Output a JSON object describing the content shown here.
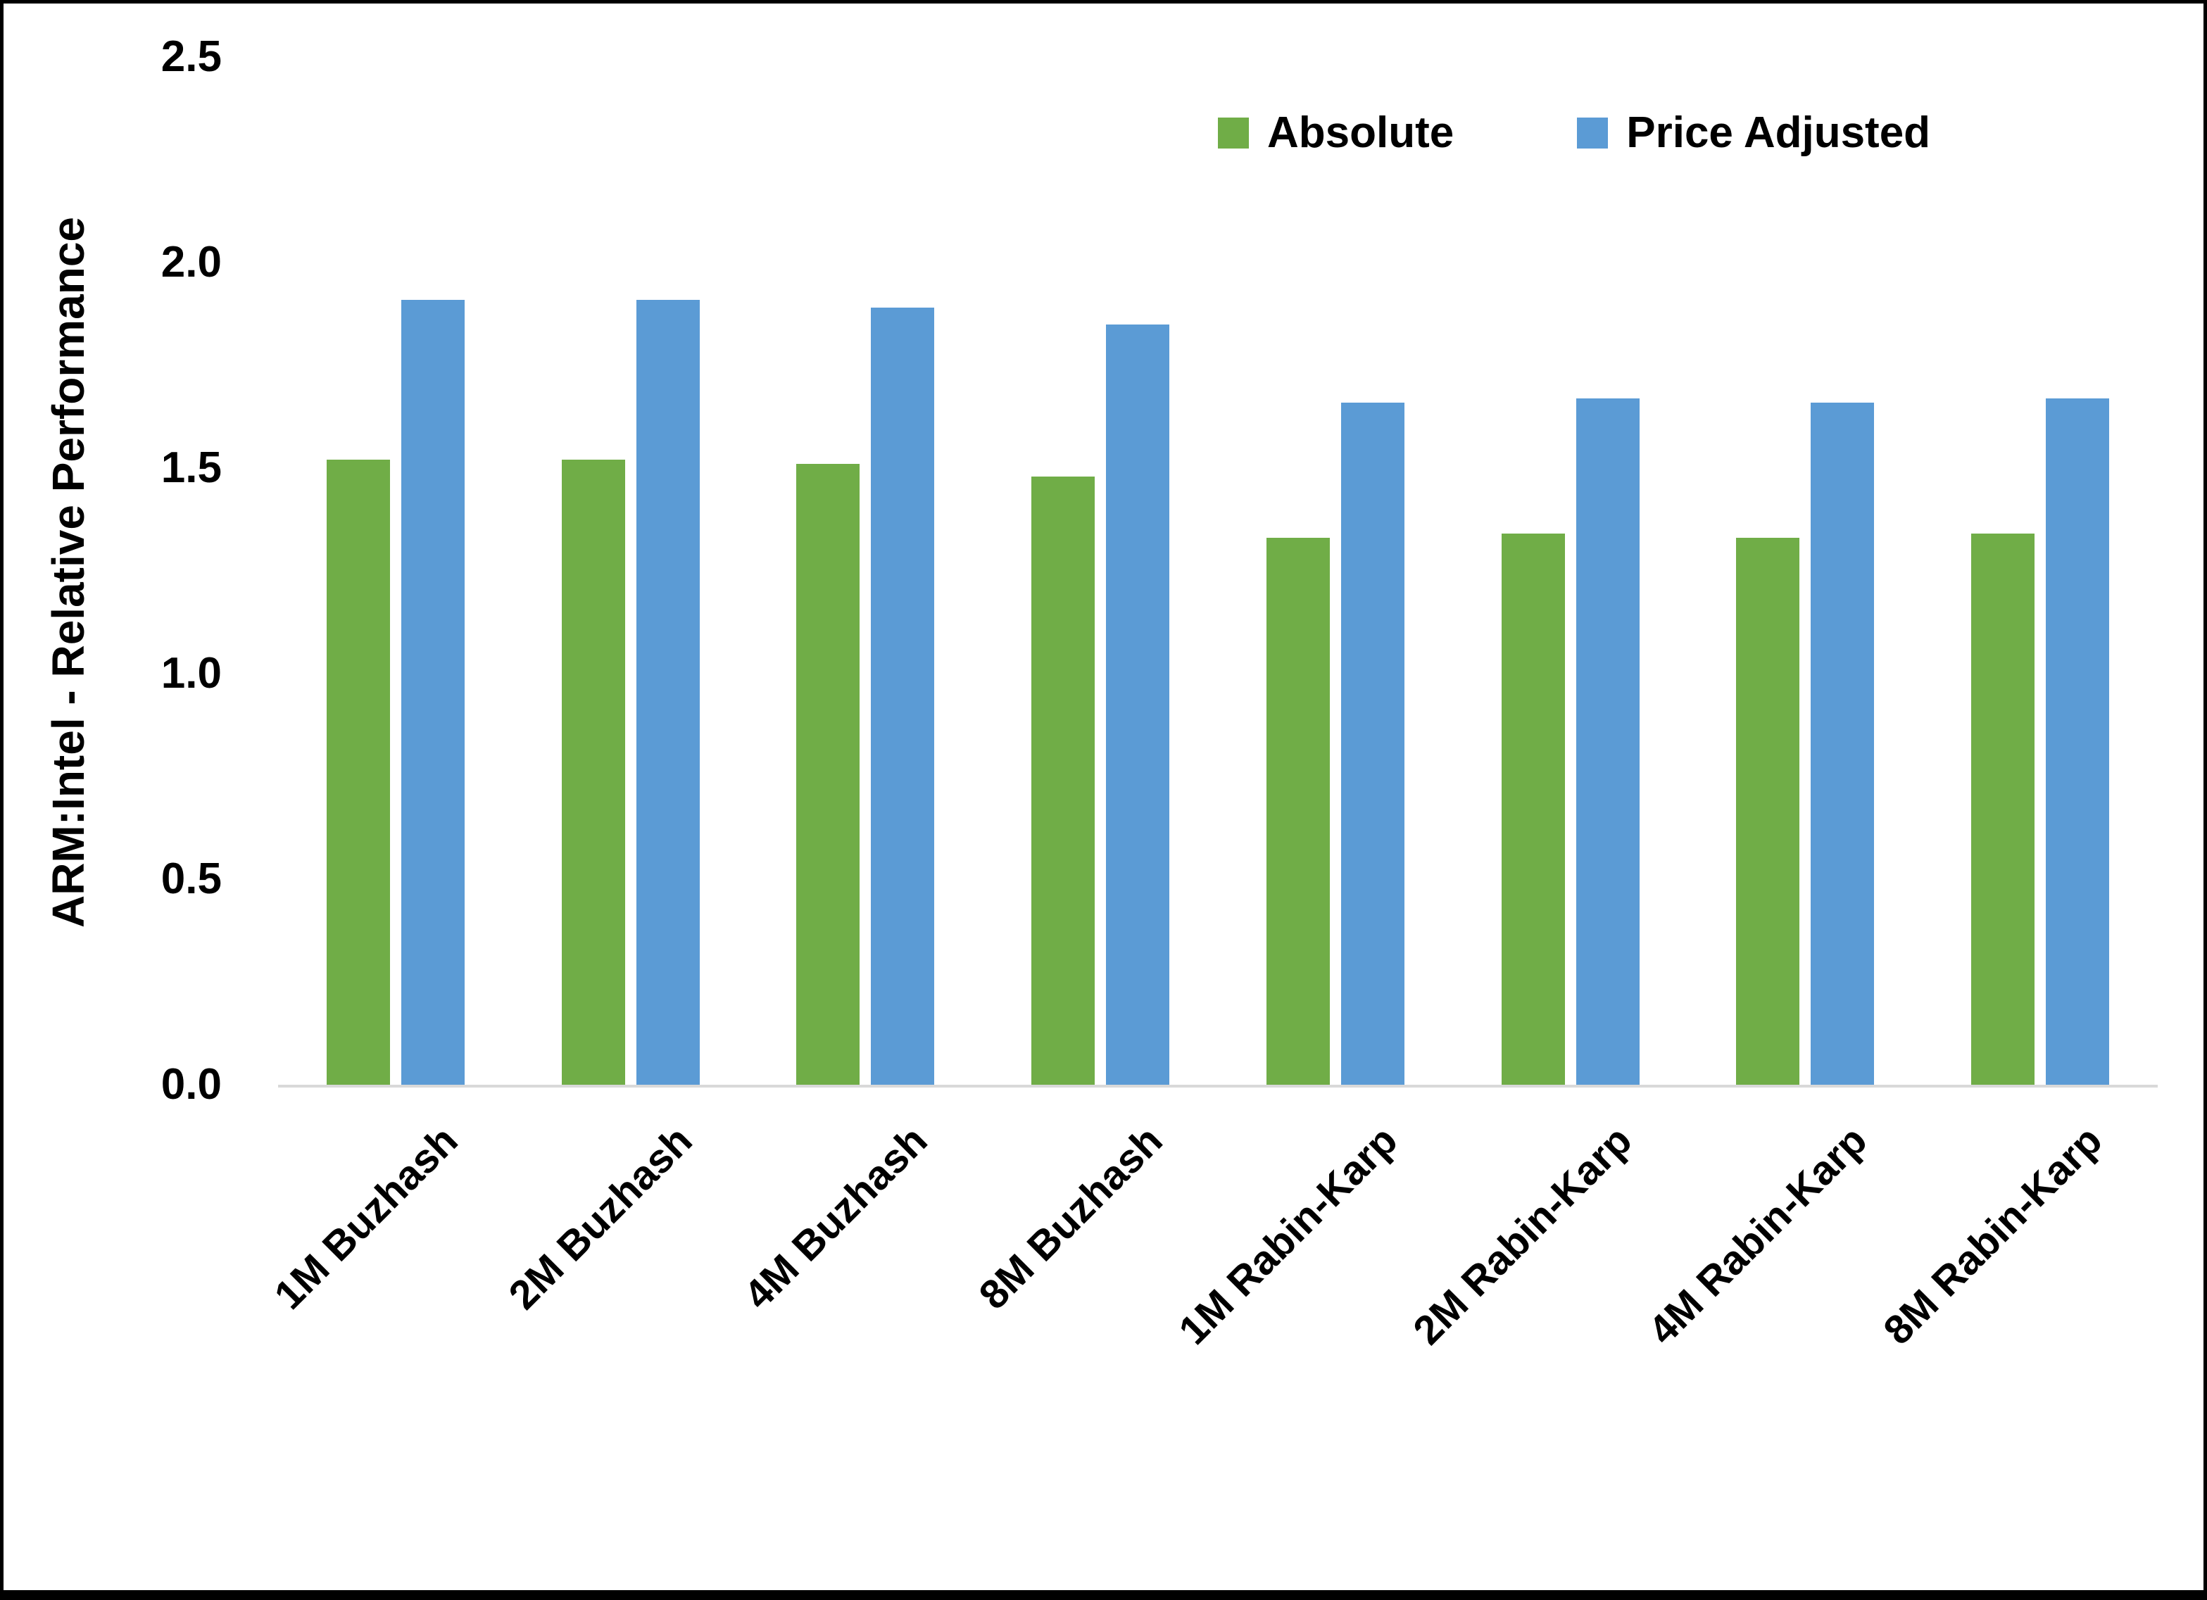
{
  "chart_data": {
    "type": "bar",
    "title": "",
    "xlabel": "",
    "ylabel": "ARM:Intel - Relative Performance",
    "ylim": [
      0,
      2.5
    ],
    "yticks": [
      "0.0",
      "0.5",
      "1.0",
      "1.5",
      "2.0",
      "2.5"
    ],
    "grid": false,
    "legend_position": "top-right",
    "categories": [
      "1M Buzhash",
      "2M Buzhash",
      "4M Buzhash",
      "8M Buzhash",
      "1M Rabin-Karp",
      "2M Rabin-Karp",
      "4M Rabin-Karp",
      "8M Rabin-Karp"
    ],
    "series": [
      {
        "name": "Absolute",
        "color": "#70AD47",
        "values": [
          1.52,
          1.52,
          1.51,
          1.48,
          1.33,
          1.34,
          1.33,
          1.34
        ]
      },
      {
        "name": "Price Adjusted",
        "color": "#5B9BD5",
        "values": [
          1.91,
          1.91,
          1.89,
          1.85,
          1.66,
          1.67,
          1.66,
          1.67
        ]
      }
    ]
  }
}
